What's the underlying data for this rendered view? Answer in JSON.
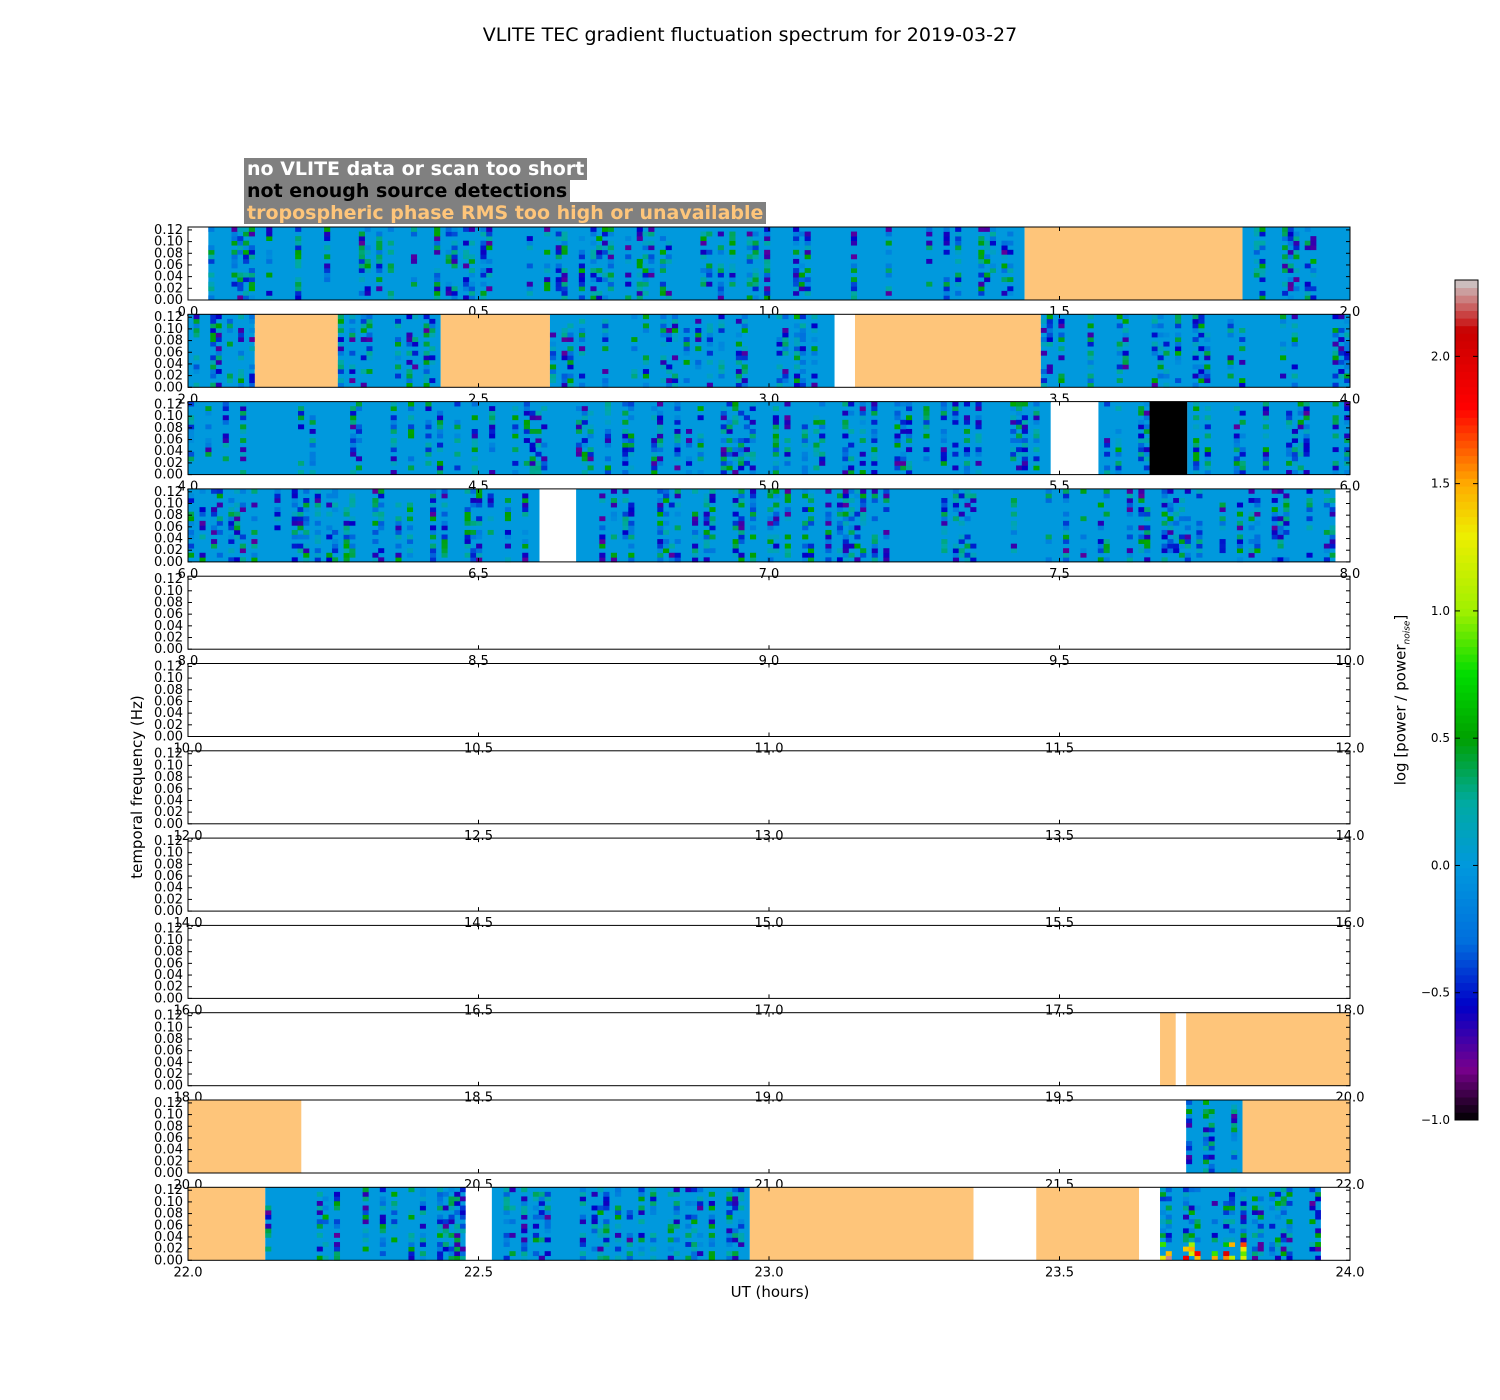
{
  "title": "VLITE TEC gradient fluctuation spectrum for 2019-03-27",
  "legend": {
    "no_data": "no VLITE data or scan too short",
    "few_sources": "not enough source detections",
    "tropo": "tropospheric phase RMS too high or unavailable"
  },
  "colors": {
    "no_data": "#ffffff",
    "few_sources": "#000000",
    "tropo": "#fec57a",
    "legend_bg": "#808080",
    "base": "#0099dd"
  },
  "chart_data": {
    "type": "heatmap",
    "title": "VLITE TEC gradient fluctuation spectrum for 2019-03-27",
    "xlabel": "UT (hours)",
    "ylabel": "temporal frequency (Hz)",
    "ylim": [
      0,
      0.125
    ],
    "yticks": [
      "0.00",
      "0.02",
      "0.04",
      "0.06",
      "0.08",
      "0.10",
      "0.12"
    ],
    "colorbar": {
      "label_main": "log [power / power",
      "label_sub": "noise",
      "label_end": "]",
      "range": [
        -1.0,
        2.3
      ],
      "ticks": [
        "−1.0",
        "−0.5",
        "0.0",
        "0.5",
        "1.0",
        "1.5",
        "2.0"
      ],
      "tick_values": [
        -1.0,
        -0.5,
        0.0,
        0.5,
        1.0,
        1.5,
        2.0
      ]
    },
    "panels": [
      {
        "range": [
          0,
          2
        ],
        "xticks": [
          "0.0",
          "0.5",
          "1.0",
          "1.5",
          "2.0"
        ],
        "segments": [
          {
            "start": 0.0,
            "end": 0.035,
            "kind": "none"
          },
          {
            "start": 0.035,
            "end": 1.44,
            "kind": "data"
          },
          {
            "start": 1.44,
            "end": 1.815,
            "kind": "tropo"
          },
          {
            "start": 1.815,
            "end": 2.0,
            "kind": "data"
          }
        ]
      },
      {
        "range": [
          2,
          4
        ],
        "xticks": [
          "2.0",
          "2.5",
          "3.0",
          "3.5",
          "4.0"
        ],
        "segments": [
          {
            "start": 2.0,
            "end": 2.115,
            "kind": "data"
          },
          {
            "start": 2.115,
            "end": 2.258,
            "kind": "tropo"
          },
          {
            "start": 2.258,
            "end": 2.435,
            "kind": "data"
          },
          {
            "start": 2.435,
            "end": 2.623,
            "kind": "tropo"
          },
          {
            "start": 2.623,
            "end": 3.113,
            "kind": "data"
          },
          {
            "start": 3.113,
            "end": 3.148,
            "kind": "none"
          },
          {
            "start": 3.148,
            "end": 3.468,
            "kind": "tropo"
          },
          {
            "start": 3.468,
            "end": 4.0,
            "kind": "data"
          }
        ]
      },
      {
        "range": [
          4,
          6
        ],
        "xticks": [
          "4.0",
          "4.5",
          "5.0",
          "5.5",
          "6.0"
        ],
        "segments": [
          {
            "start": 4.0,
            "end": 5.485,
            "kind": "data"
          },
          {
            "start": 5.485,
            "end": 5.567,
            "kind": "none"
          },
          {
            "start": 5.567,
            "end": 5.655,
            "kind": "data"
          },
          {
            "start": 5.655,
            "end": 5.72,
            "kind": "few"
          },
          {
            "start": 5.72,
            "end": 6.0,
            "kind": "data"
          }
        ]
      },
      {
        "range": [
          6,
          8
        ],
        "xticks": [
          "6.0",
          "6.5",
          "7.0",
          "7.5",
          "8.0"
        ],
        "segments": [
          {
            "start": 6.0,
            "end": 6.605,
            "kind": "data"
          },
          {
            "start": 6.605,
            "end": 6.668,
            "kind": "none"
          },
          {
            "start": 6.668,
            "end": 7.975,
            "kind": "data"
          },
          {
            "start": 7.975,
            "end": 8.0,
            "kind": "none"
          }
        ]
      },
      {
        "range": [
          8,
          10
        ],
        "xticks": [
          "8.0",
          "8.5",
          "9.0",
          "9.5",
          "10.0"
        ],
        "segments": []
      },
      {
        "range": [
          10,
          12
        ],
        "xticks": [
          "10.0",
          "10.5",
          "11.0",
          "11.5",
          "12.0"
        ],
        "segments": []
      },
      {
        "range": [
          12,
          14
        ],
        "xticks": [
          "12.0",
          "12.5",
          "13.0",
          "13.5",
          "14.0"
        ],
        "segments": []
      },
      {
        "range": [
          14,
          16
        ],
        "xticks": [
          "14.0",
          "14.5",
          "15.0",
          "15.5",
          "16.0"
        ],
        "segments": []
      },
      {
        "range": [
          16,
          18
        ],
        "xticks": [
          "16.0",
          "16.5",
          "17.0",
          "17.5",
          "18.0"
        ],
        "segments": []
      },
      {
        "range": [
          18,
          20
        ],
        "xticks": [
          "18.0",
          "18.5",
          "19.0",
          "19.5",
          "20.0"
        ],
        "segments": [
          {
            "start": 19.673,
            "end": 19.7,
            "kind": "tropo"
          },
          {
            "start": 19.718,
            "end": 20.0,
            "kind": "tropo"
          }
        ]
      },
      {
        "range": [
          20,
          22
        ],
        "xticks": [
          "20.0",
          "20.5",
          "21.0",
          "21.5",
          "22.0"
        ],
        "segments": [
          {
            "start": 20.0,
            "end": 20.195,
            "kind": "tropo"
          },
          {
            "start": 21.718,
            "end": 21.815,
            "kind": "data"
          },
          {
            "start": 21.815,
            "end": 22.0,
            "kind": "tropo"
          }
        ]
      },
      {
        "range": [
          22,
          24
        ],
        "xticks": [
          "22.0",
          "22.5",
          "23.0",
          "23.5",
          "24.0"
        ],
        "segments": [
          {
            "start": 22.0,
            "end": 22.133,
            "kind": "tropo"
          },
          {
            "start": 22.133,
            "end": 22.478,
            "kind": "data"
          },
          {
            "start": 22.478,
            "end": 22.523,
            "kind": "none"
          },
          {
            "start": 22.523,
            "end": 22.967,
            "kind": "data"
          },
          {
            "start": 22.967,
            "end": 23.352,
            "kind": "tropo"
          },
          {
            "start": 23.352,
            "end": 23.46,
            "kind": "none"
          },
          {
            "start": 23.46,
            "end": 23.637,
            "kind": "tropo"
          },
          {
            "start": 23.637,
            "end": 23.673,
            "kind": "none"
          },
          {
            "start": 23.673,
            "end": 23.95,
            "kind": "data",
            "burst": [
              23.673,
              23.82
            ]
          },
          {
            "start": 23.95,
            "end": 24.0,
            "kind": "none"
          }
        ]
      }
    ]
  }
}
